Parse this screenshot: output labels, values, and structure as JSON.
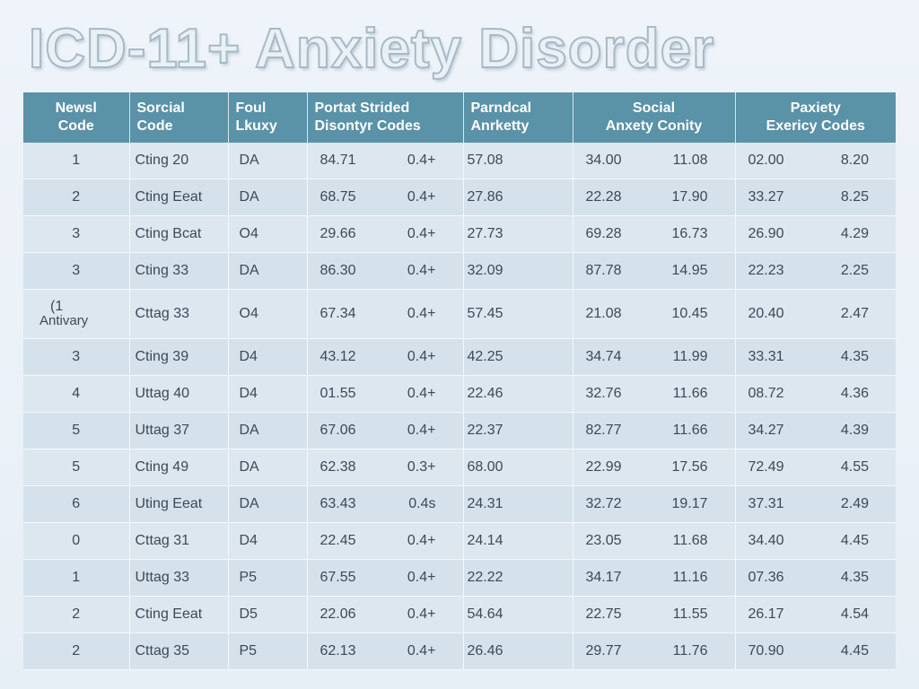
{
  "title": "ICD-11+ Anxiety Disorder",
  "headers": [
    [
      "Newsl",
      "Code"
    ],
    [
      "Sorcial",
      "Code"
    ],
    [
      "Foul",
      "Lkuxy"
    ],
    [
      "Portat Strided",
      "Disontyr Codes"
    ],
    [
      "Parndcal",
      "Anrketty"
    ],
    [
      "Social",
      "Anxety Conity"
    ],
    [
      "Paxiety",
      "Exericy Codes"
    ]
  ],
  "rows": [
    {
      "code": "1",
      "name": "Cting 20",
      "fam": "DA",
      "a1": "84.71",
      "a2": "0.4+",
      "b": "57.08",
      "c1": "34.00",
      "c2": "11.08",
      "d1": "02.00",
      "d2": "8.20"
    },
    {
      "code": "2",
      "name": "Cting Eeat",
      "fam": "DA",
      "a1": "68.75",
      "a2": "0.4+",
      "b": "27.86",
      "c1": "22.28",
      "c2": "17.90",
      "d1": "33.27",
      "d2": "8.25"
    },
    {
      "code": "3",
      "name": "Cting Bcat",
      "fam": "O4",
      "a1": "29.66",
      "a2": "0.4+",
      "b": "27.73",
      "c1": "69.28",
      "c2": "16.73",
      "d1": "26.90",
      "d2": "4.29"
    },
    {
      "code": "3",
      "name": "Cting 33",
      "fam": "DA",
      "a1": "86.30",
      "a2": "0.4+",
      "b": "32.09",
      "c1": "87.78",
      "c2": "14.95",
      "d1": "22.23",
      "d2": "2.25"
    },
    {
      "code": "(1",
      "code_note": "Antivary",
      "name": "Cttag 33",
      "fam": "O4",
      "a1": "67.34",
      "a2": "0.4+",
      "b": "57.45",
      "c1": "21.08",
      "c2": "10.45",
      "d1": "20.40",
      "d2": "2.47"
    },
    {
      "code": "3",
      "name": "Cting 39",
      "fam": "D4",
      "a1": "43.12",
      "a2": "0.4+",
      "b": "42.25",
      "c1": "34.74",
      "c2": "11.99",
      "d1": "33.31",
      "d2": "4.35"
    },
    {
      "code": "4",
      "name": "Uttag 40",
      "fam": "D4",
      "a1": "01.55",
      "a2": "0.4+",
      "b": "22.46",
      "c1": "32.76",
      "c2": "11.66",
      "d1": "08.72",
      "d2": "4.36"
    },
    {
      "code": "5",
      "name": "Uttag 37",
      "fam": "DA",
      "a1": "67.06",
      "a2": "0.4+",
      "b": "22.37",
      "c1": "82.77",
      "c2": "11.66",
      "d1": "34.27",
      "d2": "4.39"
    },
    {
      "code": "5",
      "name": "Cting 49",
      "fam": "DA",
      "a1": "62.38",
      "a2": "0.3+",
      "b": "68.00",
      "c1": "22.99",
      "c2": "17.56",
      "d1": "72.49",
      "d2": "4.55"
    },
    {
      "code": "6",
      "name": "Uting Eeat",
      "fam": "DA",
      "a1": "63.43",
      "a2": "0.4s",
      "b": "24.31",
      "c1": "32.72",
      "c2": "19.17",
      "d1": "37.31",
      "d2": "2.49"
    },
    {
      "code": "0",
      "name": "Cttag 31",
      "fam": "D4",
      "a1": "22.45",
      "a2": "0.4+",
      "b": "24.14",
      "c1": "23.05",
      "c2": "11.68",
      "d1": "34.40",
      "d2": "4.45"
    },
    {
      "code": "1",
      "name": "Uttag 33",
      "fam": "P5",
      "a1": "67.55",
      "a2": "0.4+",
      "b": "22.22",
      "c1": "34.17",
      "c2": "11.16",
      "d1": "07.36",
      "d2": "4.35"
    },
    {
      "code": "2",
      "name": "Cting Eeat",
      "fam": "D5",
      "a1": "22.06",
      "a2": "0.4+",
      "b": "54.64",
      "c1": "22.75",
      "c2": "11.55",
      "d1": "26.17",
      "d2": "4.54"
    },
    {
      "code": "2",
      "name": "Cttag 35",
      "fam": "P5",
      "a1": "62.13",
      "a2": "0.4+",
      "b": "26.46",
      "c1": "29.77",
      "c2": "11.76",
      "d1": "70.90",
      "d2": "4.45"
    }
  ]
}
